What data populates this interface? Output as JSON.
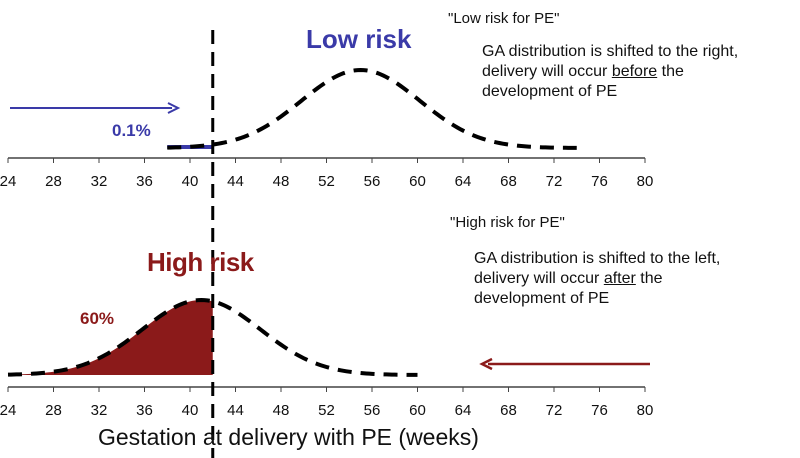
{
  "chart_data": [
    {
      "type": "line",
      "title": "Low risk",
      "subtitle": "\"Low risk for PE\"",
      "note": [
        "GA distribution is shifted to the right,",
        "delivery will occur ",
        "before",
        " the",
        "development of PE"
      ],
      "area_label": "0.1%",
      "distribution": {
        "mean": 55,
        "sd": 5.2,
        "from": 38,
        "to": 74
      },
      "fill_to": 42,
      "arrow_direction": "right",
      "color": "#3a3aa8",
      "xlim": [
        24,
        80
      ],
      "ticks": [
        24,
        28,
        32,
        36,
        40,
        44,
        48,
        52,
        56,
        60,
        64,
        68,
        72,
        76,
        80
      ]
    },
    {
      "type": "area",
      "title": "High risk",
      "subtitle": "\"High risk for PE\"",
      "note": [
        "GA distribution is shifted to the left,",
        "delivery will occur ",
        "after",
        " the",
        "development of PE"
      ],
      "area_label": "60%",
      "distribution": {
        "mean": 41,
        "sd": 5.2,
        "from": 24,
        "to": 60
      },
      "fill_to": 42,
      "arrow_direction": "left",
      "color": "#8b1a1a",
      "xlim": [
        24,
        80
      ],
      "ticks": [
        24,
        28,
        32,
        36,
        40,
        44,
        48,
        52,
        56,
        60,
        64,
        68,
        72,
        76,
        80
      ]
    }
  ],
  "threshold_week": 42,
  "xlabel": "Gestation at delivery with PE (weeks)"
}
